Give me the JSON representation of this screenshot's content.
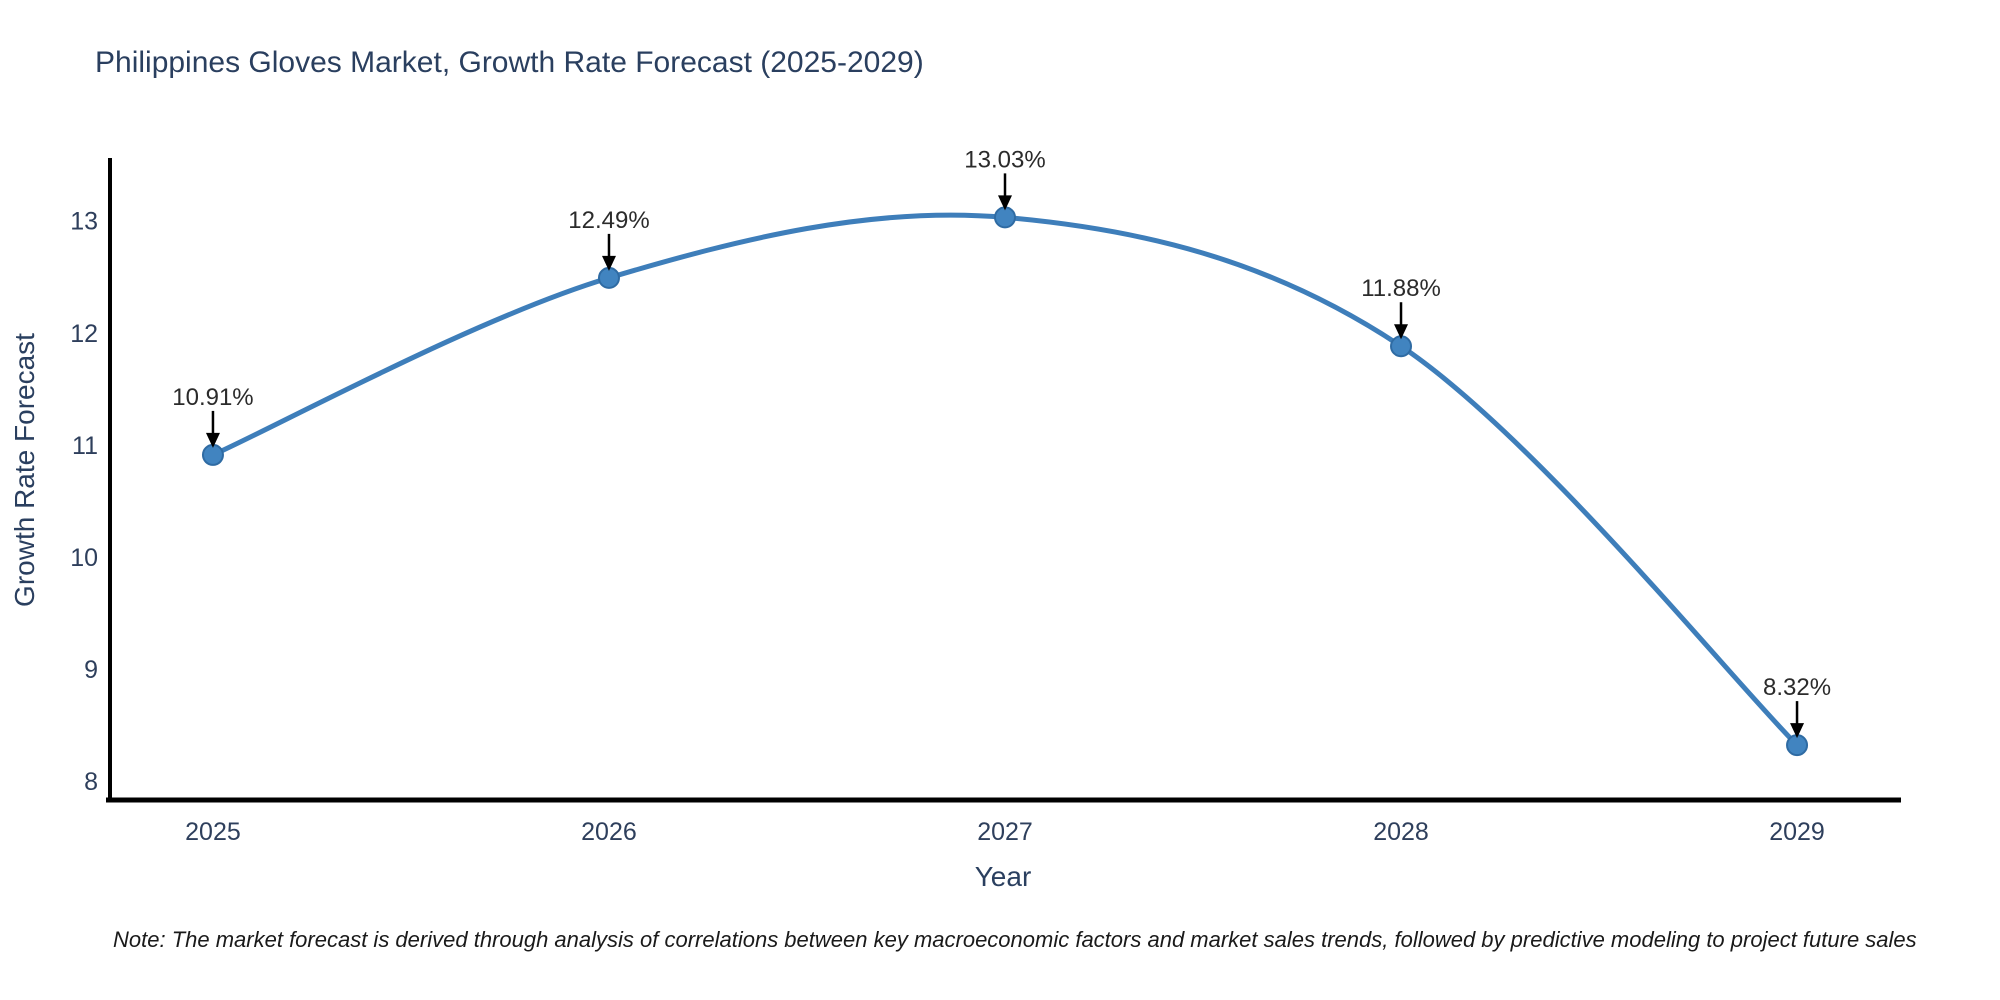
{
  "page": {
    "note": "Note: The market forecast is derived through analysis of correlations between key macroeconomic factors and market sales trends, followed by predictive modeling to project future sales"
  },
  "chart_data": {
    "type": "line",
    "title": "Philippines Gloves Market, Growth Rate Forecast (2025-2029)",
    "xlabel": "Year",
    "ylabel": "Growth Rate Forecast",
    "x": [
      2025,
      2026,
      2027,
      2028,
      2029
    ],
    "values": [
      10.91,
      12.49,
      13.03,
      11.88,
      8.32
    ],
    "point_labels": [
      "10.91%",
      "12.49%",
      "13.03%",
      "11.88%",
      "8.32%"
    ],
    "x_tick_labels": [
      "2025",
      "2026",
      "2027",
      "2028",
      "2029"
    ],
    "y_ticks": [
      8,
      9,
      10,
      11,
      12,
      13
    ],
    "xlim": [
      2024.74,
      2029.26
    ],
    "ylim": [
      7.83,
      13.56
    ],
    "line_shape": "spline",
    "grid": false,
    "legend": false,
    "annotation_arrows": "down-to-point",
    "colors": {
      "line": "#3e7eba",
      "marker": "#4184c0",
      "marker_edge": "#2f6ba3",
      "axis_line": "#000000",
      "title_text": "#2a3f5f",
      "tick_text": "#2e3f5c",
      "annotation_text": "#2b2b2b",
      "arrow": "#000000",
      "note_text": "#1a1a1a",
      "background": "#ffffff"
    }
  }
}
